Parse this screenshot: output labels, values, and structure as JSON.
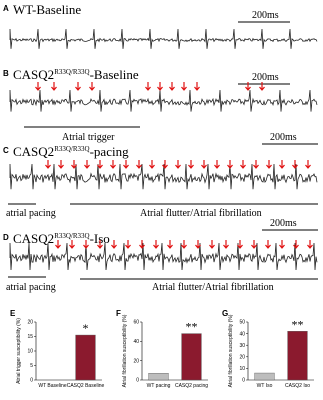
{
  "panels": [
    {
      "letter": "A",
      "title": "WT-Baseline",
      "scale": "200ms"
    },
    {
      "letter": "B",
      "title": "CASQ2",
      "sup": "R33Q/R33Q",
      "suffix": "-Baseline",
      "scale": "200ms",
      "note": "Atrial trigger"
    },
    {
      "letter": "C",
      "title": "CASQ2",
      "sup": "R33Q/R33Q",
      "suffix": "-pacing",
      "scale": "200ms",
      "pacing": "atrial pacing",
      "note": "Atrial flutter/Atrial fibrillation"
    },
    {
      "letter": "D",
      "title": "CASQ2",
      "sup": "R33Q/R33Q",
      "suffix": "-Iso",
      "scale": "200ms",
      "pacing": "atrial pacing",
      "note": "Atrial flutter/Atrial fibrillation"
    }
  ],
  "chart_data": [
    {
      "type": "bar",
      "letter": "E",
      "y_label": "Atrial trigger susceptibility (%)",
      "categories": [
        "WT Baseline",
        "CASQ2 Baseline"
      ],
      "values": [
        0,
        15.5
      ],
      "colors": [
        "#bdbdbd",
        "#8b1a2e"
      ],
      "ylim": [
        0,
        20
      ],
      "yticks": [
        0,
        5,
        10,
        15,
        20
      ],
      "annotation": "*"
    },
    {
      "type": "bar",
      "letter": "F",
      "y_label": "Atrial fibrillation susceptibility (%)",
      "categories": [
        "WT pacing",
        "CASQ2 pacing"
      ],
      "values": [
        7,
        48
      ],
      "colors": [
        "#bdbdbd",
        "#8b1a2e"
      ],
      "ylim": [
        0,
        60
      ],
      "yticks": [
        0,
        20,
        40,
        60
      ],
      "annotation": "**"
    },
    {
      "type": "bar",
      "letter": "G",
      "y_label": "Atrial fibrillation susceptibility (%)",
      "categories": [
        "WT Iso",
        "CASQ2 Iso"
      ],
      "values": [
        6,
        42
      ],
      "colors": [
        "#bdbdbd",
        "#8b1a2e"
      ],
      "ylim": [
        0,
        50
      ],
      "yticks": [
        0,
        10,
        20,
        30,
        40,
        50
      ],
      "annotation": "**"
    }
  ]
}
